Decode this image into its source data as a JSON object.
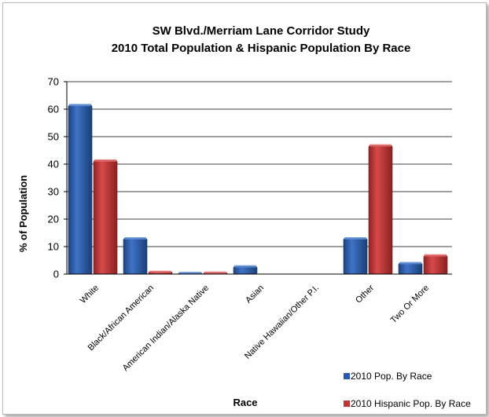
{
  "chart_data": {
    "type": "bar",
    "title_line1": "SW Blvd./Merriam Lane Corridor Study",
    "title_line2": "2010 Total Population & Hispanic Population By Race",
    "xlabel": "Race",
    "ylabel": "% of Population",
    "ylim": [
      0,
      70
    ],
    "yticks": [
      0,
      10,
      20,
      30,
      40,
      50,
      60,
      70
    ],
    "categories": [
      "White",
      "Black/African American",
      "American Indian/Alaska Native",
      "Asian",
      "Native Hawaiian/Other P.I.",
      "Other",
      "Two Or More"
    ],
    "series": [
      {
        "name": "2010 Pop. By Race",
        "color": "#2b5aa8",
        "values": [
          61.5,
          13,
          0.4,
          2.8,
          0,
          13,
          4
        ]
      },
      {
        "name": "2010 Hispanic Pop. By Race",
        "color": "#c13434",
        "values": [
          41.3,
          0.8,
          0.5,
          0,
          0,
          46.8,
          6.8
        ]
      }
    ],
    "grid": true,
    "legend_position": "bottom-right"
  }
}
